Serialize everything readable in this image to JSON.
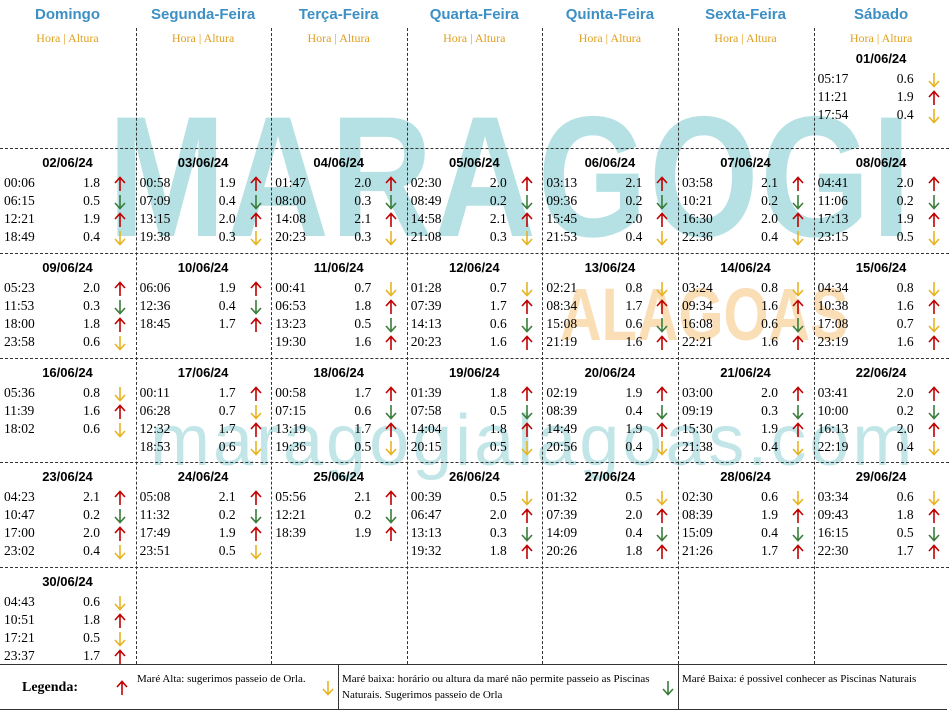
{
  "days": [
    "Domingo",
    "Segunda-Feira",
    "Terça-Feira",
    "Quarta-Feira",
    "Quinta-Feira",
    "Sexta-Feira",
    "Sábado"
  ],
  "subheader": "Hora | Altura",
  "watermark": {
    "main": "MARAGOGI",
    "sub": "ALAGOAS",
    "site": "maragogialagoas.com"
  },
  "weeks": [
    [
      null,
      null,
      null,
      null,
      null,
      null,
      {
        "date": "01/06/24",
        "tides": [
          [
            "05:17",
            "0.6",
            "#e6b422"
          ],
          [
            "11:21",
            "1.9",
            "#c00000"
          ],
          [
            "17:54",
            "0.4",
            "#e6b422"
          ]
        ]
      }
    ],
    [
      {
        "date": "02/06/24",
        "tides": [
          [
            "00:06",
            "1.8",
            "#c00000"
          ],
          [
            "06:15",
            "0.5",
            "#3a7d3a"
          ],
          [
            "12:21",
            "1.9",
            "#c00000"
          ],
          [
            "18:49",
            "0.4",
            "#e6b422"
          ]
        ]
      },
      {
        "date": "03/06/24",
        "tides": [
          [
            "00:58",
            "1.9",
            "#c00000"
          ],
          [
            "07:09",
            "0.4",
            "#3a7d3a"
          ],
          [
            "13:15",
            "2.0",
            "#c00000"
          ],
          [
            "19:38",
            "0.3",
            "#e6b422"
          ]
        ]
      },
      {
        "date": "04/06/24",
        "tides": [
          [
            "01:47",
            "2.0",
            "#c00000"
          ],
          [
            "08:00",
            "0.3",
            "#3a7d3a"
          ],
          [
            "14:08",
            "2.1",
            "#c00000"
          ],
          [
            "20:23",
            "0.3",
            "#e6b422"
          ]
        ]
      },
      {
        "date": "05/06/24",
        "tides": [
          [
            "02:30",
            "2.0",
            "#c00000"
          ],
          [
            "08:49",
            "0.2",
            "#3a7d3a"
          ],
          [
            "14:58",
            "2.1",
            "#c00000"
          ],
          [
            "21:08",
            "0.3",
            "#e6b422"
          ]
        ]
      },
      {
        "date": "06/06/24",
        "tides": [
          [
            "03:13",
            "2.1",
            "#c00000"
          ],
          [
            "09:36",
            "0.2",
            "#3a7d3a"
          ],
          [
            "15:45",
            "2.0",
            "#c00000"
          ],
          [
            "21:53",
            "0.4",
            "#e6b422"
          ]
        ]
      },
      {
        "date": "07/06/24",
        "tides": [
          [
            "03:58",
            "2.1",
            "#c00000"
          ],
          [
            "10:21",
            "0.2",
            "#3a7d3a"
          ],
          [
            "16:30",
            "2.0",
            "#c00000"
          ],
          [
            "22:36",
            "0.4",
            "#e6b422"
          ]
        ]
      },
      {
        "date": "08/06/24",
        "tides": [
          [
            "04:41",
            "2.0",
            "#c00000"
          ],
          [
            "11:06",
            "0.2",
            "#3a7d3a"
          ],
          [
            "17:13",
            "1.9",
            "#c00000"
          ],
          [
            "23:15",
            "0.5",
            "#e6b422"
          ]
        ]
      }
    ],
    [
      {
        "date": "09/06/24",
        "tides": [
          [
            "05:23",
            "2.0",
            "#c00000"
          ],
          [
            "11:53",
            "0.3",
            "#3a7d3a"
          ],
          [
            "18:00",
            "1.8",
            "#c00000"
          ],
          [
            "23:58",
            "0.6",
            "#e6b422"
          ]
        ]
      },
      {
        "date": "10/06/24",
        "tides": [
          [
            "06:06",
            "1.9",
            "#c00000"
          ],
          [
            "12:36",
            "0.4",
            "#3a7d3a"
          ],
          [
            "18:45",
            "1.7",
            "#c00000"
          ]
        ]
      },
      {
        "date": "11/06/24",
        "tides": [
          [
            "00:41",
            "0.7",
            "#e6b422"
          ],
          [
            "06:53",
            "1.8",
            "#c00000"
          ],
          [
            "13:23",
            "0.5",
            "#3a7d3a"
          ],
          [
            "19:30",
            "1.6",
            "#c00000"
          ]
        ]
      },
      {
        "date": "12/06/24",
        "tides": [
          [
            "01:28",
            "0.7",
            "#e6b422"
          ],
          [
            "07:39",
            "1.7",
            "#c00000"
          ],
          [
            "14:13",
            "0.6",
            "#3a7d3a"
          ],
          [
            "20:23",
            "1.6",
            "#c00000"
          ]
        ]
      },
      {
        "date": "13/06/24",
        "tides": [
          [
            "02:21",
            "0.8",
            "#e6b422"
          ],
          [
            "08:34",
            "1.7",
            "#c00000"
          ],
          [
            "15:08",
            "0.6",
            "#3a7d3a"
          ],
          [
            "21:19",
            "1.6",
            "#c00000"
          ]
        ]
      },
      {
        "date": "14/06/24",
        "tides": [
          [
            "03:24",
            "0.8",
            "#e6b422"
          ],
          [
            "09:34",
            "1.6",
            "#c00000"
          ],
          [
            "16:08",
            "0.6",
            "#3a7d3a"
          ],
          [
            "22:21",
            "1.6",
            "#c00000"
          ]
        ]
      },
      {
        "date": "15/06/24",
        "tides": [
          [
            "04:34",
            "0.8",
            "#e6b422"
          ],
          [
            "10:38",
            "1.6",
            "#c00000"
          ],
          [
            "17:08",
            "0.7",
            "#e6b422"
          ],
          [
            "23:19",
            "1.6",
            "#c00000"
          ]
        ]
      }
    ],
    [
      {
        "date": "16/06/24",
        "tides": [
          [
            "05:36",
            "0.8",
            "#e6b422"
          ],
          [
            "11:39",
            "1.6",
            "#c00000"
          ],
          [
            "18:02",
            "0.6",
            "#e6b422"
          ]
        ]
      },
      {
        "date": "17/06/24",
        "tides": [
          [
            "00:11",
            "1.7",
            "#c00000"
          ],
          [
            "06:28",
            "0.7",
            "#e6b422"
          ],
          [
            "12:32",
            "1.7",
            "#c00000"
          ],
          [
            "18:53",
            "0.6",
            "#e6b422"
          ]
        ]
      },
      {
        "date": "18/06/24",
        "tides": [
          [
            "00:58",
            "1.7",
            "#c00000"
          ],
          [
            "07:15",
            "0.6",
            "#3a7d3a"
          ],
          [
            "13:19",
            "1.7",
            "#c00000"
          ],
          [
            "19:36",
            "0.5",
            "#e6b422"
          ]
        ]
      },
      {
        "date": "19/06/24",
        "tides": [
          [
            "01:39",
            "1.8",
            "#c00000"
          ],
          [
            "07:58",
            "0.5",
            "#3a7d3a"
          ],
          [
            "14:04",
            "1.8",
            "#c00000"
          ],
          [
            "20:15",
            "0.5",
            "#e6b422"
          ]
        ]
      },
      {
        "date": "20/06/24",
        "tides": [
          [
            "02:19",
            "1.9",
            "#c00000"
          ],
          [
            "08:39",
            "0.4",
            "#3a7d3a"
          ],
          [
            "14:49",
            "1.9",
            "#c00000"
          ],
          [
            "20:56",
            "0.4",
            "#e6b422"
          ]
        ]
      },
      {
        "date": "21/06/24",
        "tides": [
          [
            "03:00",
            "2.0",
            "#c00000"
          ],
          [
            "09:19",
            "0.3",
            "#3a7d3a"
          ],
          [
            "15:30",
            "1.9",
            "#c00000"
          ],
          [
            "21:38",
            "0.4",
            "#e6b422"
          ]
        ]
      },
      {
        "date": "22/06/24",
        "tides": [
          [
            "03:41",
            "2.0",
            "#c00000"
          ],
          [
            "10:00",
            "0.2",
            "#3a7d3a"
          ],
          [
            "16:13",
            "2.0",
            "#c00000"
          ],
          [
            "22:19",
            "0.4",
            "#e6b422"
          ]
        ]
      }
    ],
    [
      {
        "date": "23/06/24",
        "tides": [
          [
            "04:23",
            "2.1",
            "#c00000"
          ],
          [
            "10:47",
            "0.2",
            "#3a7d3a"
          ],
          [
            "17:00",
            "2.0",
            "#c00000"
          ],
          [
            "23:02",
            "0.4",
            "#e6b422"
          ]
        ]
      },
      {
        "date": "24/06/24",
        "tides": [
          [
            "05:08",
            "2.1",
            "#c00000"
          ],
          [
            "11:32",
            "0.2",
            "#3a7d3a"
          ],
          [
            "17:49",
            "1.9",
            "#c00000"
          ],
          [
            "23:51",
            "0.5",
            "#e6b422"
          ]
        ]
      },
      {
        "date": "25/06/24",
        "tides": [
          [
            "05:56",
            "2.1",
            "#c00000"
          ],
          [
            "12:21",
            "0.2",
            "#3a7d3a"
          ],
          [
            "18:39",
            "1.9",
            "#c00000"
          ]
        ]
      },
      {
        "date": "26/06/24",
        "tides": [
          [
            "00:39",
            "0.5",
            "#e6b422"
          ],
          [
            "06:47",
            "2.0",
            "#c00000"
          ],
          [
            "13:13",
            "0.3",
            "#3a7d3a"
          ],
          [
            "19:32",
            "1.8",
            "#c00000"
          ]
        ]
      },
      {
        "date": "27/06/24",
        "tides": [
          [
            "01:32",
            "0.5",
            "#e6b422"
          ],
          [
            "07:39",
            "2.0",
            "#c00000"
          ],
          [
            "14:09",
            "0.4",
            "#3a7d3a"
          ],
          [
            "20:26",
            "1.8",
            "#c00000"
          ]
        ]
      },
      {
        "date": "28/06/24",
        "tides": [
          [
            "02:30",
            "0.6",
            "#e6b422"
          ],
          [
            "08:39",
            "1.9",
            "#c00000"
          ],
          [
            "15:09",
            "0.4",
            "#3a7d3a"
          ],
          [
            "21:26",
            "1.7",
            "#c00000"
          ]
        ]
      },
      {
        "date": "29/06/24",
        "tides": [
          [
            "03:34",
            "0.6",
            "#e6b422"
          ],
          [
            "09:43",
            "1.8",
            "#c00000"
          ],
          [
            "16:15",
            "0.5",
            "#3a7d3a"
          ],
          [
            "22:30",
            "1.7",
            "#c00000"
          ]
        ]
      }
    ],
    [
      {
        "date": "30/06/24",
        "tides": [
          [
            "04:43",
            "0.6",
            "#e6b422"
          ],
          [
            "10:51",
            "1.8",
            "#c00000"
          ],
          [
            "17:21",
            "0.5",
            "#e6b422"
          ],
          [
            "23:37",
            "1.7",
            "#c00000"
          ]
        ]
      },
      null,
      null,
      null,
      null,
      null,
      null
    ]
  ],
  "legend": {
    "title": "Legenda:",
    "items": [
      {
        "text": "Maré Alta: sugerimos passeio de Orla.",
        "color": "#c00000",
        "arrow": "up"
      },
      {
        "text": "Maré baixa: horário ou altura da maré não permite passeio as Piscinas Naturais. Sugerimos passeio de Orla",
        "color": "#e6b422",
        "arrow": "down"
      },
      {
        "text": "Maré Baixa: é possivel conhecer as Piscinas Naturais",
        "color": "#3a7d3a",
        "arrow": "down"
      }
    ]
  }
}
